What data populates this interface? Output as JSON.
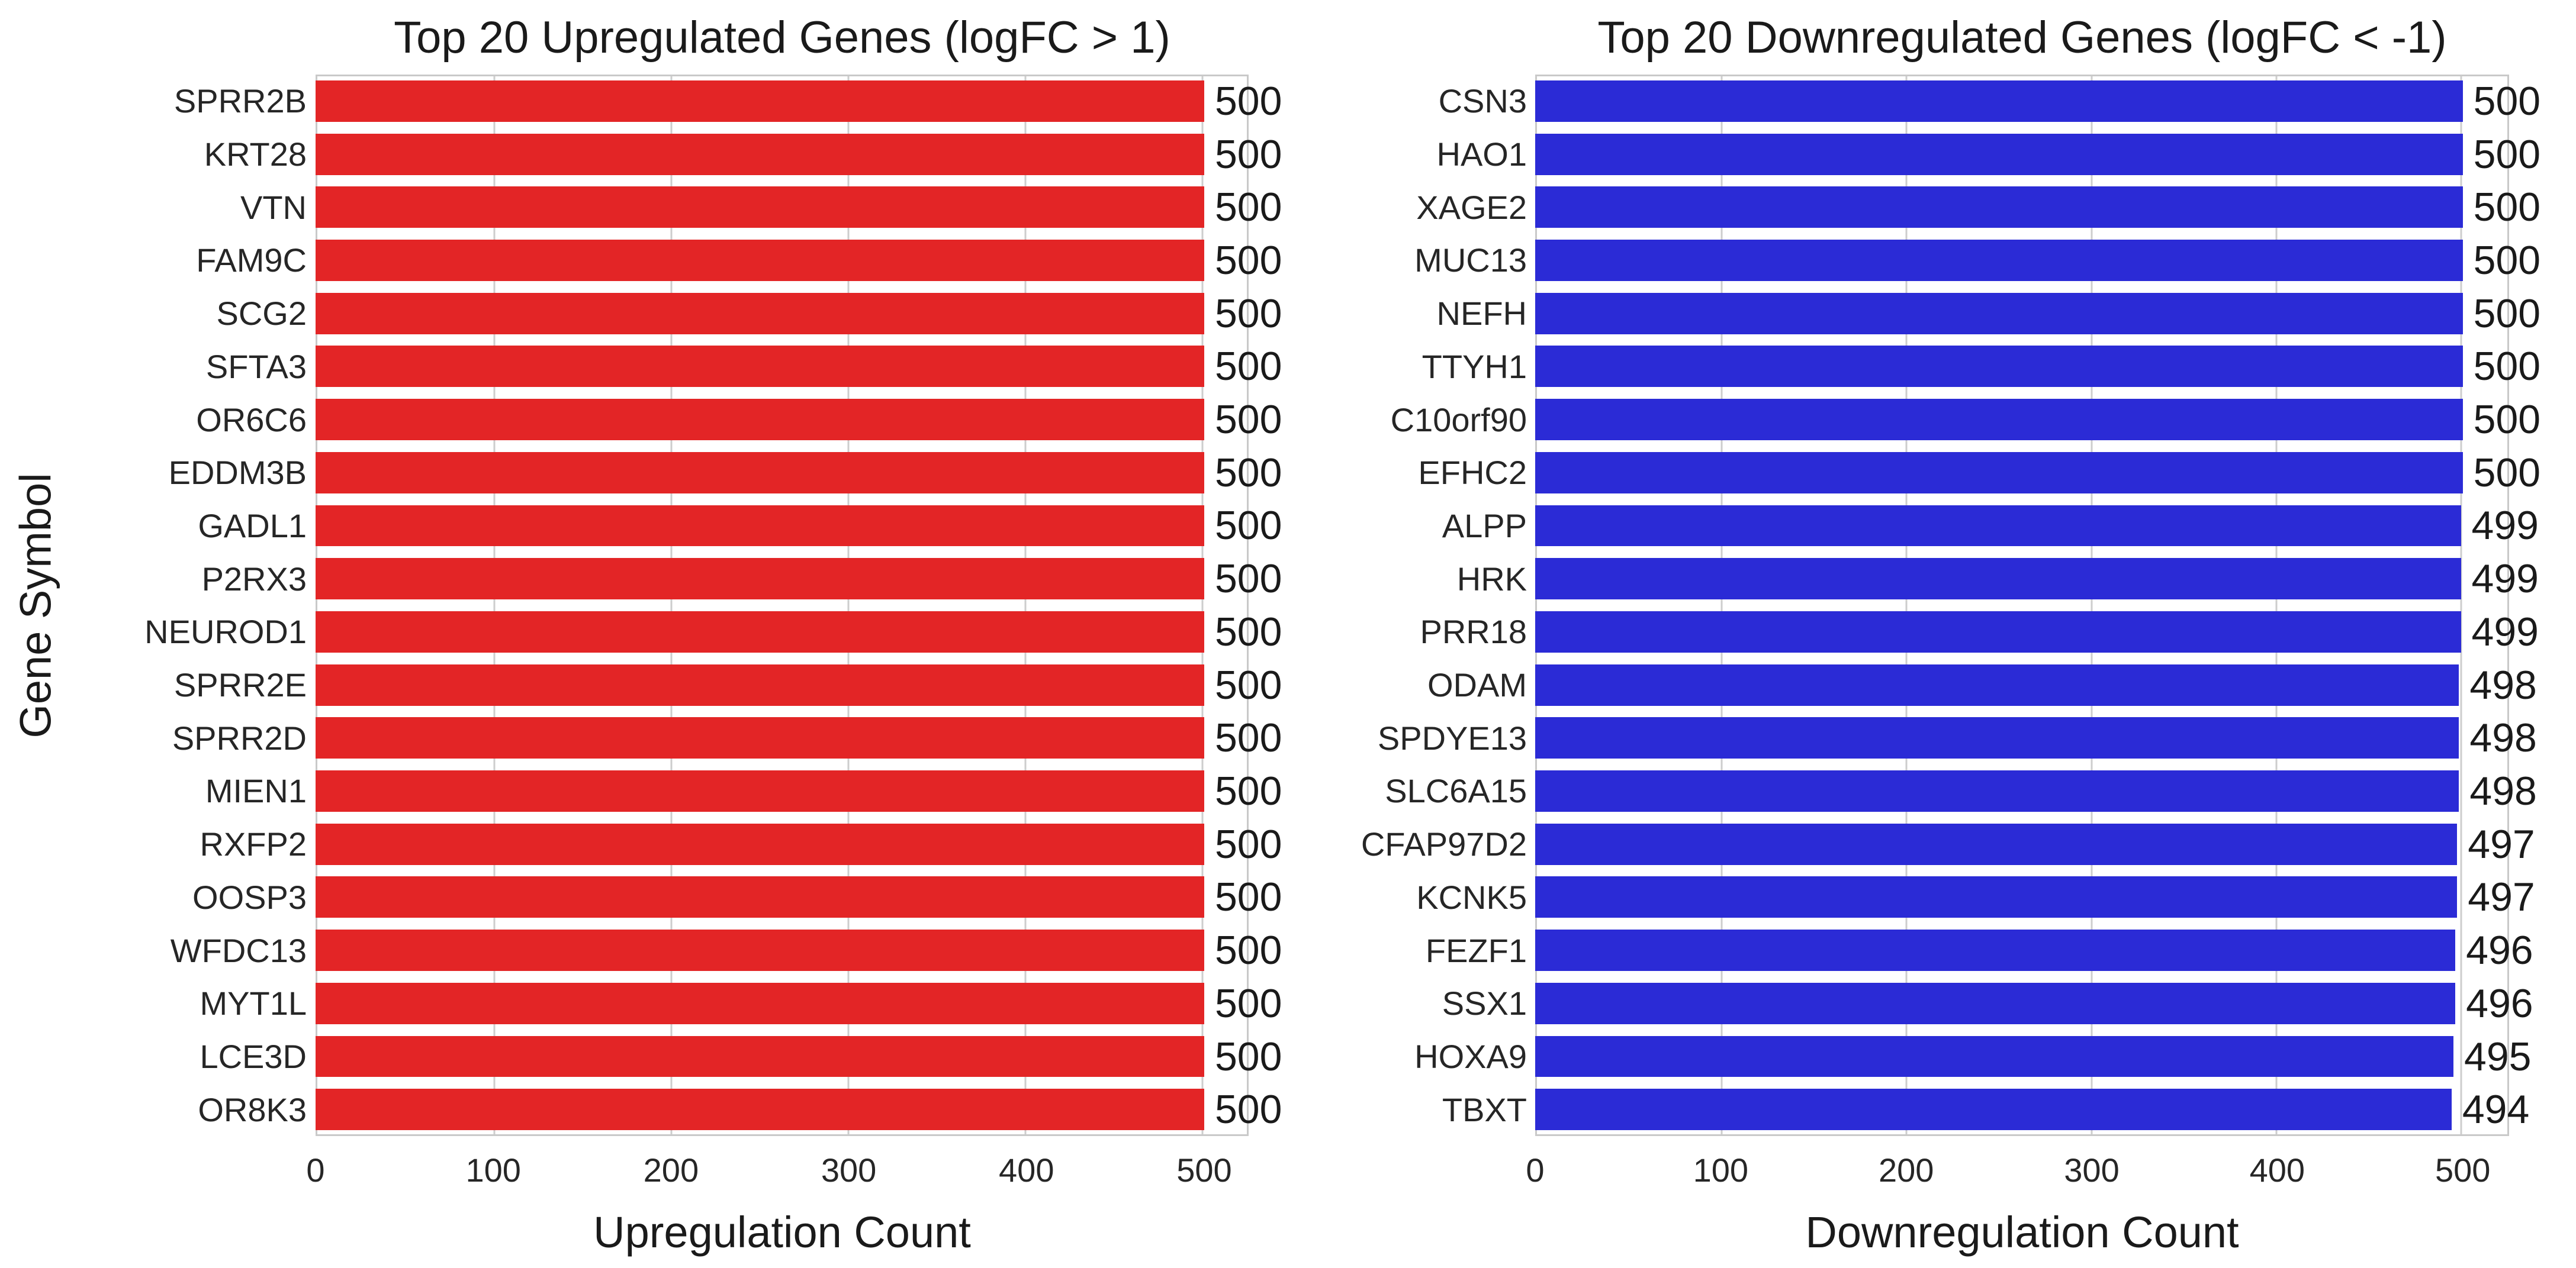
{
  "chart_data": [
    {
      "type": "bar",
      "orientation": "horizontal",
      "title": "Top 20 Upregulated Genes (logFC > 1)",
      "xlabel": "Upregulation Count",
      "ylabel": "Gene Symbol",
      "bar_color": "#e32526",
      "grid_color": "#cdcdcd",
      "grid": true,
      "legend": false,
      "xlim": [
        0,
        525
      ],
      "xticks": [
        0,
        100,
        200,
        300,
        400,
        500
      ],
      "categories": [
        "SPRR2B",
        "KRT28",
        "VTN",
        "FAM9C",
        "SCG2",
        "SFTA3",
        "OR6C6",
        "EDDM3B",
        "GADL1",
        "P2RX3",
        "NEUROD1",
        "SPRR2E",
        "SPRR2D",
        "MIEN1",
        "RXFP2",
        "OOSP3",
        "WFDC13",
        "MYT1L",
        "LCE3D",
        "OR8K3"
      ],
      "values": [
        500,
        500,
        500,
        500,
        500,
        500,
        500,
        500,
        500,
        500,
        500,
        500,
        500,
        500,
        500,
        500,
        500,
        500,
        500,
        500
      ]
    },
    {
      "type": "bar",
      "orientation": "horizontal",
      "title": "Top 20 Downregulated Genes (logFC < -1)",
      "xlabel": "Downregulation Count",
      "ylabel": "",
      "bar_color": "#2b2bd6",
      "grid_color": "#cdcdcd",
      "grid": true,
      "legend": false,
      "xlim": [
        0,
        525
      ],
      "xticks": [
        0,
        100,
        200,
        300,
        400,
        500
      ],
      "categories": [
        "CSN3",
        "HAO1",
        "XAGE2",
        "MUC13",
        "NEFH",
        "TTYH1",
        "C10orf90",
        "EFHC2",
        "ALPP",
        "HRK",
        "PRR18",
        "ODAM",
        "SPDYE13",
        "SLC6A15",
        "CFAP97D2",
        "KCNK5",
        "FEZF1",
        "SSX1",
        "HOXA9",
        "TBXT"
      ],
      "values": [
        500,
        500,
        500,
        500,
        500,
        500,
        500,
        500,
        499,
        499,
        499,
        498,
        498,
        498,
        497,
        497,
        496,
        496,
        495,
        494
      ]
    }
  ]
}
